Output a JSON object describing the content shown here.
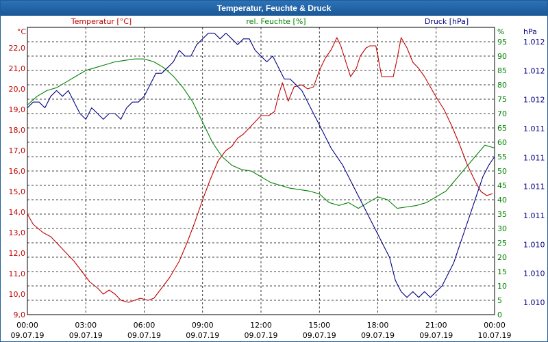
{
  "title": "Temperatur, Feuchte & Druck",
  "chart_data": {
    "type": "line",
    "title": "Temperatur, Feuchte & Druck",
    "grid": true,
    "x_ticks": [
      {
        "h": 0,
        "time": "00:00",
        "date": "09.07.19"
      },
      {
        "h": 3,
        "time": "03:00",
        "date": "09.07.19"
      },
      {
        "h": 6,
        "time": "06:00",
        "date": "09.07.19"
      },
      {
        "h": 9,
        "time": "09:00",
        "date": "09.07.19"
      },
      {
        "h": 12,
        "time": "12:00",
        "date": "09.07.19"
      },
      {
        "h": 15,
        "time": "15:00",
        "date": "09.07.19"
      },
      {
        "h": 18,
        "time": "18:00",
        "date": "09.07.19"
      },
      {
        "h": 21,
        "time": "21:00",
        "date": "09.07.19"
      },
      {
        "h": 24,
        "time": "00:00",
        "date": "10.07.19"
      }
    ],
    "x_range": [
      0,
      24
    ],
    "axes": {
      "temp": {
        "label": "Temperatur [°C]",
        "unit": "°C",
        "range": [
          9.0,
          23.0
        ],
        "color": "#c00000",
        "ticks": [
          "22,0",
          "21,0",
          "20,0",
          "19,0",
          "18,0",
          "17,0",
          "16,0",
          "15,0",
          "14,0",
          "13,0",
          "12,0",
          "11,0",
          "10,0",
          "9,0"
        ]
      },
      "hum": {
        "label": "rel. Feuchte [%]",
        "unit": "%",
        "range": [
          0,
          100
        ],
        "color": "#008000",
        "ticks": [
          "95",
          "90",
          "85",
          "80",
          "75",
          "70",
          "65",
          "60",
          "55",
          "50",
          "45",
          "40",
          "35",
          "30",
          "25",
          "20",
          "15",
          "10",
          "5",
          "0"
        ]
      },
      "press": {
        "label": "Druck [hPa]",
        "unit": "hPa",
        "range": [
          0,
          1
        ],
        "color": "#000080",
        "ticks": [
          "1.012",
          "1.012",
          "1.012",
          "1.011",
          "1.011",
          "1.011",
          "1.011",
          "1.010",
          "1.010",
          "1.010"
        ]
      }
    },
    "series": [
      {
        "name": "Temperatur [°C]",
        "axis": "temp",
        "color": "#c00000",
        "points": [
          [
            0,
            13.9
          ],
          [
            0.3,
            13.4
          ],
          [
            0.8,
            13.0
          ],
          [
            1.2,
            12.8
          ],
          [
            1.6,
            12.4
          ],
          [
            2.0,
            12.0
          ],
          [
            2.4,
            11.6
          ],
          [
            2.8,
            11.1
          ],
          [
            3.2,
            10.6
          ],
          [
            3.6,
            10.3
          ],
          [
            3.9,
            10.0
          ],
          [
            4.2,
            10.2
          ],
          [
            4.5,
            10.0
          ],
          [
            4.8,
            9.7
          ],
          [
            5.2,
            9.6
          ],
          [
            5.5,
            9.7
          ],
          [
            5.8,
            9.8
          ],
          [
            6.2,
            9.7
          ],
          [
            6.5,
            9.8
          ],
          [
            6.9,
            10.3
          ],
          [
            7.3,
            10.8
          ],
          [
            7.8,
            11.6
          ],
          [
            8.2,
            12.5
          ],
          [
            8.6,
            13.5
          ],
          [
            9.0,
            14.6
          ],
          [
            9.4,
            15.6
          ],
          [
            9.8,
            16.5
          ],
          [
            10.2,
            17.0
          ],
          [
            10.5,
            17.2
          ],
          [
            10.8,
            17.6
          ],
          [
            11.1,
            17.8
          ],
          [
            11.4,
            18.1
          ],
          [
            11.7,
            18.4
          ],
          [
            12.0,
            18.7
          ],
          [
            12.4,
            18.7
          ],
          [
            12.7,
            18.9
          ],
          [
            12.9,
            19.7
          ],
          [
            13.1,
            20.3
          ],
          [
            13.4,
            19.4
          ],
          [
            13.7,
            20.1
          ],
          [
            14.1,
            20.2
          ],
          [
            14.4,
            20.0
          ],
          [
            14.7,
            20.1
          ],
          [
            15.0,
            20.9
          ],
          [
            15.3,
            21.5
          ],
          [
            15.6,
            21.9
          ],
          [
            15.9,
            22.5
          ],
          [
            16.1,
            22.1
          ],
          [
            16.4,
            21.2
          ],
          [
            16.6,
            20.6
          ],
          [
            16.9,
            21.0
          ],
          [
            17.1,
            21.6
          ],
          [
            17.4,
            22.0
          ],
          [
            17.6,
            22.1
          ],
          [
            17.9,
            22.1
          ],
          [
            18.2,
            20.6
          ],
          [
            18.5,
            20.6
          ],
          [
            18.8,
            20.6
          ],
          [
            19.0,
            21.5
          ],
          [
            19.2,
            22.5
          ],
          [
            19.5,
            22.0
          ],
          [
            19.8,
            21.3
          ],
          [
            20.1,
            21.0
          ],
          [
            20.4,
            20.6
          ],
          [
            20.7,
            20.1
          ],
          [
            21.0,
            19.6
          ],
          [
            21.4,
            19.0
          ],
          [
            21.8,
            18.2
          ],
          [
            22.2,
            17.3
          ],
          [
            22.6,
            16.3
          ],
          [
            23.0,
            15.5
          ],
          [
            23.3,
            15.0
          ],
          [
            23.6,
            14.8
          ],
          [
            23.9,
            14.9
          ]
        ]
      },
      {
        "name": "rel. Feuchte [%]",
        "axis": "hum",
        "color": "#008000",
        "points": [
          [
            0,
            73
          ],
          [
            0.5,
            76
          ],
          [
            1.0,
            78
          ],
          [
            1.5,
            79
          ],
          [
            2.0,
            81
          ],
          [
            2.5,
            83
          ],
          [
            3.0,
            85
          ],
          [
            3.5,
            86
          ],
          [
            4.0,
            87
          ],
          [
            4.5,
            88
          ],
          [
            5.0,
            88.5
          ],
          [
            5.5,
            89
          ],
          [
            6.0,
            89
          ],
          [
            6.5,
            88
          ],
          [
            7.0,
            86
          ],
          [
            7.5,
            83
          ],
          [
            8.0,
            79
          ],
          [
            8.5,
            74
          ],
          [
            9.0,
            67
          ],
          [
            9.5,
            60
          ],
          [
            10.0,
            55
          ],
          [
            10.5,
            52
          ],
          [
            11.0,
            50.5
          ],
          [
            11.5,
            50
          ],
          [
            12.0,
            48
          ],
          [
            12.5,
            46
          ],
          [
            13.0,
            45
          ],
          [
            13.5,
            44
          ],
          [
            14.0,
            43.5
          ],
          [
            14.5,
            43
          ],
          [
            15.0,
            42
          ],
          [
            15.5,
            39
          ],
          [
            16.0,
            38
          ],
          [
            16.5,
            39
          ],
          [
            17.0,
            37
          ],
          [
            17.5,
            39
          ],
          [
            18.0,
            41
          ],
          [
            18.5,
            40
          ],
          [
            19.0,
            37
          ],
          [
            19.5,
            37.5
          ],
          [
            20.0,
            38
          ],
          [
            20.5,
            39
          ],
          [
            21.0,
            41
          ],
          [
            21.5,
            43
          ],
          [
            22.0,
            47
          ],
          [
            22.5,
            51
          ],
          [
            23.0,
            55
          ],
          [
            23.5,
            59
          ],
          [
            24.0,
            58
          ]
        ]
      },
      {
        "name": "Druck [hPa]",
        "axis": "press",
        "color": "#000080",
        "points": [
          [
            0,
            0.72
          ],
          [
            0.3,
            0.74
          ],
          [
            0.6,
            0.74
          ],
          [
            0.9,
            0.72
          ],
          [
            1.2,
            0.76
          ],
          [
            1.5,
            0.78
          ],
          [
            1.8,
            0.76
          ],
          [
            2.1,
            0.78
          ],
          [
            2.4,
            0.74
          ],
          [
            2.7,
            0.7
          ],
          [
            3.0,
            0.68
          ],
          [
            3.3,
            0.72
          ],
          [
            3.6,
            0.7
          ],
          [
            3.9,
            0.68
          ],
          [
            4.2,
            0.7
          ],
          [
            4.5,
            0.7
          ],
          [
            4.8,
            0.68
          ],
          [
            5.1,
            0.72
          ],
          [
            5.4,
            0.74
          ],
          [
            5.7,
            0.74
          ],
          [
            6.0,
            0.76
          ],
          [
            6.3,
            0.8
          ],
          [
            6.6,
            0.84
          ],
          [
            6.9,
            0.84
          ],
          [
            7.2,
            0.86
          ],
          [
            7.5,
            0.88
          ],
          [
            7.8,
            0.92
          ],
          [
            8.1,
            0.9
          ],
          [
            8.4,
            0.9
          ],
          [
            8.7,
            0.94
          ],
          [
            9.0,
            0.96
          ],
          [
            9.3,
            0.98
          ],
          [
            9.6,
            0.98
          ],
          [
            9.9,
            0.96
          ],
          [
            10.2,
            0.98
          ],
          [
            10.5,
            0.96
          ],
          [
            10.8,
            0.94
          ],
          [
            11.1,
            0.96
          ],
          [
            11.4,
            0.96
          ],
          [
            11.7,
            0.92
          ],
          [
            12.0,
            0.9
          ],
          [
            12.3,
            0.88
          ],
          [
            12.6,
            0.9
          ],
          [
            12.9,
            0.86
          ],
          [
            13.2,
            0.82
          ],
          [
            13.5,
            0.82
          ],
          [
            13.8,
            0.8
          ],
          [
            14.1,
            0.78
          ],
          [
            14.4,
            0.74
          ],
          [
            14.7,
            0.7
          ],
          [
            15.0,
            0.66
          ],
          [
            15.3,
            0.62
          ],
          [
            15.6,
            0.58
          ],
          [
            15.9,
            0.55
          ],
          [
            16.2,
            0.52
          ],
          [
            16.5,
            0.48
          ],
          [
            16.8,
            0.44
          ],
          [
            17.1,
            0.4
          ],
          [
            17.4,
            0.36
          ],
          [
            17.7,
            0.32
          ],
          [
            18.0,
            0.28
          ],
          [
            18.3,
            0.24
          ],
          [
            18.6,
            0.2
          ],
          [
            18.9,
            0.12
          ],
          [
            19.2,
            0.08
          ],
          [
            19.5,
            0.06
          ],
          [
            19.8,
            0.08
          ],
          [
            20.1,
            0.06
          ],
          [
            20.4,
            0.08
          ],
          [
            20.7,
            0.06
          ],
          [
            21.0,
            0.08
          ],
          [
            21.3,
            0.1
          ],
          [
            21.6,
            0.14
          ],
          [
            21.9,
            0.18
          ],
          [
            22.2,
            0.24
          ],
          [
            22.5,
            0.3
          ],
          [
            22.8,
            0.36
          ],
          [
            23.1,
            0.42
          ],
          [
            23.4,
            0.48
          ],
          [
            23.7,
            0.52
          ],
          [
            24.0,
            0.55
          ]
        ]
      }
    ]
  }
}
